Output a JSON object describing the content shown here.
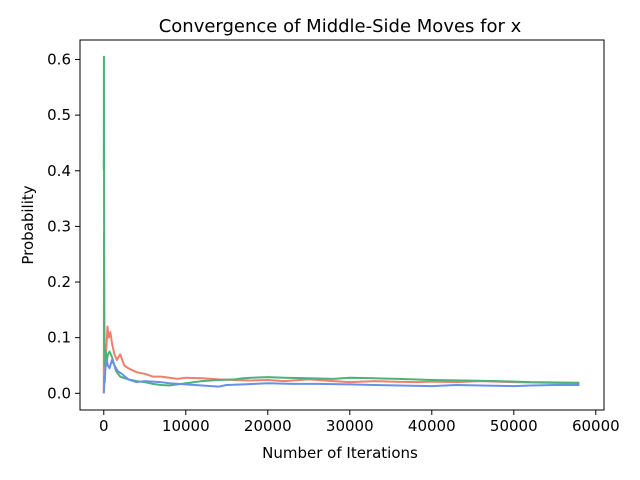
{
  "chart_data": {
    "type": "line",
    "title": "Convergence of Middle-Side Moves for x",
    "xlabel": "Number of Iterations",
    "ylabel": "Probability",
    "xlim": [
      -2900,
      61000
    ],
    "ylim": [
      -0.03,
      0.635
    ],
    "xticks": [
      0,
      10000,
      20000,
      30000,
      40000,
      50000,
      60000
    ],
    "yticks": [
      0.0,
      0.1,
      0.2,
      0.3,
      0.4,
      0.5,
      0.6
    ],
    "xtick_labels": [
      "0",
      "10000",
      "20000",
      "30000",
      "40000",
      "50000",
      "60000"
    ],
    "ytick_labels": [
      "0.0",
      "0.1",
      "0.2",
      "0.3",
      "0.4",
      "0.5",
      "0.6"
    ],
    "grid": false,
    "legend": false,
    "series": [
      {
        "color": "#f07f6b",
        "x": [
          0,
          30,
          60,
          100,
          150,
          200,
          260,
          350,
          450,
          600,
          800,
          1000,
          1300,
          1600,
          2000,
          2500,
          3000,
          4000,
          5000,
          6000,
          7000,
          8000,
          9000,
          10000,
          12000,
          14000,
          16000,
          18000,
          20000,
          22000,
          25000,
          28000,
          30000,
          33000,
          35000,
          38000,
          40000,
          43000,
          46000,
          50000,
          54000,
          58000
        ],
        "values": [
          0.0,
          0.29,
          0.12,
          0.04,
          0.08,
          0.05,
          0.07,
          0.09,
          0.12,
          0.1,
          0.11,
          0.09,
          0.07,
          0.06,
          0.07,
          0.05,
          0.045,
          0.038,
          0.035,
          0.03,
          0.03,
          0.028,
          0.026,
          0.028,
          0.027,
          0.025,
          0.024,
          0.023,
          0.024,
          0.022,
          0.025,
          0.022,
          0.02,
          0.022,
          0.021,
          0.02,
          0.021,
          0.02,
          0.022,
          0.02,
          0.019,
          0.018
        ]
      },
      {
        "color": "#4cb279",
        "x": [
          0,
          20,
          40,
          60,
          80,
          120,
          160,
          220,
          300,
          400,
          500,
          700,
          1000,
          1500,
          2000,
          3000,
          4000,
          5000,
          6000,
          7000,
          8000,
          9000,
          10000,
          12000,
          14000,
          16000,
          17000,
          18000,
          20000,
          22000,
          25000,
          28000,
          30000,
          33000,
          36000,
          40000,
          44000,
          48000,
          52000,
          58000
        ],
        "values": [
          0.4,
          0.605,
          0.3,
          0.12,
          0.08,
          0.05,
          0.06,
          0.075,
          0.07,
          0.06,
          0.07,
          0.075,
          0.065,
          0.04,
          0.03,
          0.025,
          0.022,
          0.02,
          0.017,
          0.015,
          0.014,
          0.016,
          0.018,
          0.022,
          0.024,
          0.025,
          0.027,
          0.028,
          0.029,
          0.028,
          0.027,
          0.026,
          0.028,
          0.027,
          0.026,
          0.024,
          0.023,
          0.022,
          0.02,
          0.019
        ]
      },
      {
        "color": "#6791e8",
        "x": [
          0,
          40,
          80,
          120,
          180,
          250,
          350,
          500,
          700,
          1000,
          1300,
          1700,
          2200,
          3000,
          4000,
          5000,
          6000,
          7000,
          8000,
          10000,
          12000,
          14000,
          15000,
          17000,
          20000,
          23000,
          26000,
          30000,
          33000,
          36000,
          40000,
          43000,
          46000,
          50000,
          52000,
          55000,
          58000
        ],
        "values": [
          0.0,
          0.01,
          0.03,
          0.02,
          0.04,
          0.05,
          0.06,
          0.05,
          0.045,
          0.06,
          0.05,
          0.04,
          0.035,
          0.025,
          0.02,
          0.022,
          0.021,
          0.02,
          0.018,
          0.016,
          0.014,
          0.012,
          0.015,
          0.016,
          0.018,
          0.017,
          0.017,
          0.016,
          0.015,
          0.014,
          0.013,
          0.015,
          0.014,
          0.013,
          0.014,
          0.015,
          0.015
        ]
      }
    ]
  }
}
